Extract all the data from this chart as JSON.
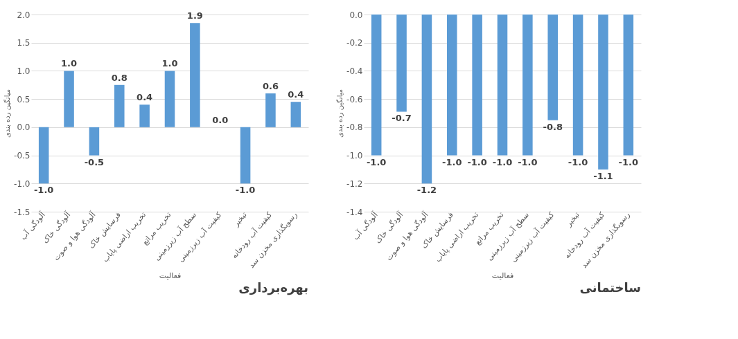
{
  "chart_data": [
    {
      "type": "bar",
      "title": "بهره‌برداری",
      "xlabel": "فعالیت",
      "ylabel": "میانگین رده بندی",
      "categories": [
        "آلودگی آب",
        "آلودگی خاک",
        "آلودگی هوا و صوت",
        "فرسایش خاک",
        "تخریب اراضی پایاب",
        "تخریب مراتع",
        "سطح آب زیرزمینی",
        "کیفیت آب زیرزمینی",
        "تبخیر",
        "کیفیت آب رودخانه",
        "رسوبگذاری مخزن سد"
      ],
      "series": [
        {
          "color": "#5b9bd5",
          "values": [
            -1.0,
            1.0,
            -0.5,
            0.75,
            0.4,
            1.0,
            1.85,
            0.0,
            -1.0,
            0.6,
            0.45
          ],
          "value_labels": [
            "-1.0",
            "1.0",
            "-0.5",
            "0.8",
            "0.4",
            "1.0",
            "1.9",
            "0.0",
            "-1.0",
            "0.6",
            "0.4"
          ]
        }
      ],
      "ylim": [
        -1.5,
        2.0
      ],
      "yticks": [
        {
          "value": -1.5,
          "label": "-1.5"
        },
        {
          "value": -1.0,
          "label": "-1.0"
        },
        {
          "value": -0.5,
          "label": "-0.5"
        },
        {
          "value": 0,
          "label": "0.0"
        },
        {
          "value": 0.5,
          "label": "0.5"
        },
        {
          "value": 1.0,
          "label": "1.0"
        },
        {
          "value": 1.5,
          "label": "1.5"
        },
        {
          "value": 2.0,
          "label": "2.0"
        }
      ],
      "grid": "y",
      "legend": false
    },
    {
      "type": "bar",
      "title": "ساختمانی",
      "xlabel": "فعالیت",
      "ylabel": "میانگین رده بندی",
      "categories": [
        "آلودگی آب",
        "آلودگی خاک",
        "آلودگی هوا و صوت",
        "فرسایش خاک",
        "تخریب اراضی پایاب",
        "تخریب مراتع",
        "سطح آب زیرزمینی",
        "کیفیت آب زیرزمینی",
        "تبخیر",
        "کیفیت آب رودخانه",
        "رسوبگذاری مخزن سد"
      ],
      "series": [
        {
          "color": "#5b9bd5",
          "values": [
            -1.0,
            -0.69,
            -1.2,
            -1.0,
            -1.0,
            -1.0,
            -1.0,
            -0.75,
            -1.0,
            -1.1,
            -1.0
          ],
          "value_labels": [
            "-1.0",
            "-0.7",
            "-1.2",
            "-1.0",
            "-1.0",
            "-1.0",
            "-1.0",
            "-0.8",
            "-1.0",
            "-1.1",
            "-1.0"
          ]
        }
      ],
      "ylim": [
        -1.4,
        0
      ],
      "yticks": [
        {
          "value": -1.4,
          "label": "-1.4"
        },
        {
          "value": -1.2,
          "label": "-1.2"
        },
        {
          "value": -1.0,
          "label": "-1.0"
        },
        {
          "value": -0.8,
          "label": "-0.8"
        },
        {
          "value": -0.6,
          "label": "-0.6"
        },
        {
          "value": -0.4,
          "label": "-0.4"
        },
        {
          "value": -0.2,
          "label": "-0.2"
        },
        {
          "value": 0,
          "label": "0.0"
        }
      ],
      "grid": "y",
      "legend": false
    }
  ]
}
